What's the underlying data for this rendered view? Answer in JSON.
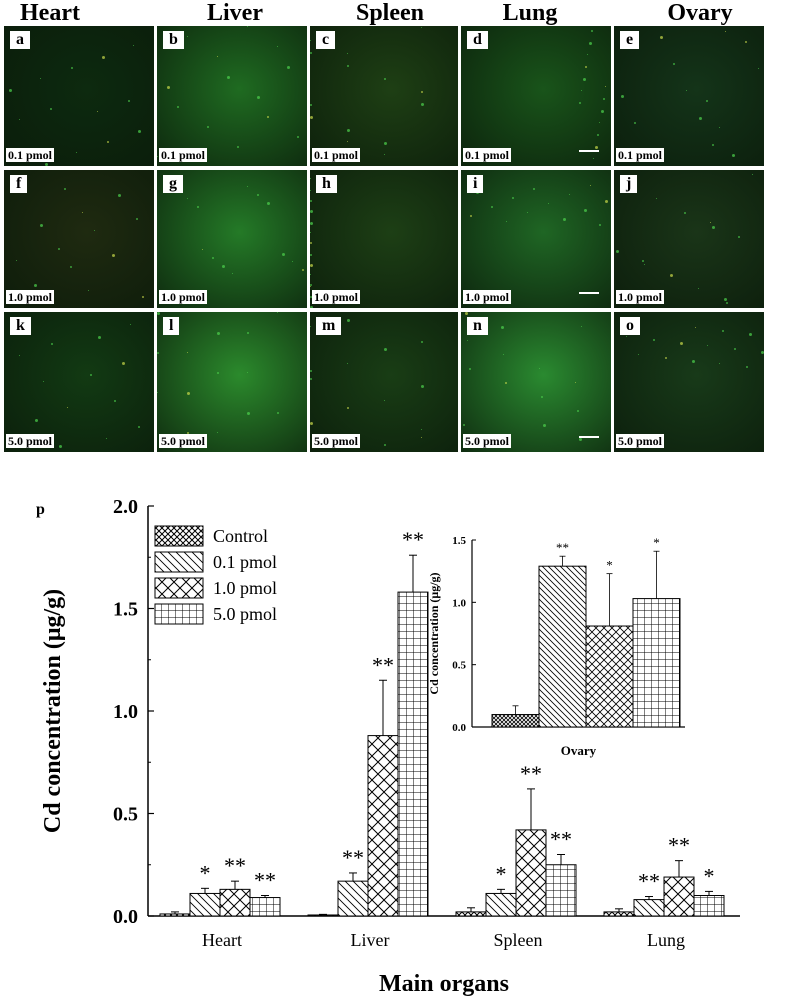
{
  "column_headers": [
    "Heart",
    "Liver",
    "Spleen",
    "Lung",
    "Ovary"
  ],
  "panels": [
    {
      "letter": "a",
      "dose": "0.1 pmol"
    },
    {
      "letter": "b",
      "dose": "0.1 pmol"
    },
    {
      "letter": "c",
      "dose": "0.1 pmol"
    },
    {
      "letter": "d",
      "dose": "0.1 pmol"
    },
    {
      "letter": "e",
      "dose": "0.1 pmol"
    },
    {
      "letter": "f",
      "dose": "1.0 pmol"
    },
    {
      "letter": "g",
      "dose": "1.0 pmol"
    },
    {
      "letter": "h",
      "dose": "1.0 pmol"
    },
    {
      "letter": "i",
      "dose": "1.0 pmol"
    },
    {
      "letter": "j",
      "dose": "1.0 pmol"
    },
    {
      "letter": "k",
      "dose": "5.0 pmol"
    },
    {
      "letter": "l",
      "dose": "5.0 pmol"
    },
    {
      "letter": "m",
      "dose": "5.0 pmol"
    },
    {
      "letter": "n",
      "dose": "5.0 pmol"
    },
    {
      "letter": "o",
      "dose": "5.0 pmol"
    }
  ],
  "panel_p_label": "p",
  "chart_data": [
    {
      "type": "bar",
      "categories": [
        "Heart",
        "Liver",
        "Spleen",
        "Lung"
      ],
      "series": [
        {
          "name": "Control",
          "values": [
            0.01,
            0.005,
            0.02,
            0.02
          ],
          "errors": [
            0.01,
            0.003,
            0.02,
            0.015
          ],
          "marks": [
            "",
            "",
            "",
            ""
          ]
        },
        {
          "name": "0.1 pmol",
          "values": [
            0.11,
            0.17,
            0.11,
            0.08
          ],
          "errors": [
            0.025,
            0.04,
            0.02,
            0.015
          ],
          "marks": [
            "*",
            "**",
            "*",
            "**"
          ]
        },
        {
          "name": "1.0 pmol",
          "values": [
            0.13,
            0.88,
            0.42,
            0.19
          ],
          "errors": [
            0.04,
            0.27,
            0.2,
            0.08
          ],
          "marks": [
            "**",
            "**",
            "**",
            "**"
          ]
        },
        {
          "name": "5.0 pmol",
          "values": [
            0.09,
            1.58,
            0.25,
            0.1
          ],
          "errors": [
            0.01,
            0.18,
            0.05,
            0.02
          ],
          "marks": [
            "**",
            "**",
            "**",
            "*"
          ]
        }
      ],
      "ylim": [
        0,
        2.0
      ],
      "yticks": [
        "0.0",
        "0.5",
        "1.0",
        "1.5",
        "2.0"
      ],
      "ylabel": "Cd concentration (μg/g)",
      "xlabel": "Main organs",
      "legend_position": "top-left"
    },
    {
      "type": "bar",
      "categories": [
        "Ovary"
      ],
      "series": [
        {
          "name": "Control",
          "values": [
            0.1
          ],
          "errors": [
            0.07
          ],
          "marks": [
            ""
          ]
        },
        {
          "name": "0.1 pmol",
          "values": [
            1.29
          ],
          "errors": [
            0.08
          ],
          "marks": [
            "**"
          ]
        },
        {
          "name": "1.0 pmol",
          "values": [
            0.81
          ],
          "errors": [
            0.42
          ],
          "marks": [
            "*"
          ]
        },
        {
          "name": "5.0 pmol",
          "values": [
            1.03
          ],
          "errors": [
            0.38
          ],
          "marks": [
            "*"
          ]
        }
      ],
      "ylim": [
        0,
        1.5
      ],
      "yticks": [
        "0.0",
        "0.5",
        "1.0",
        "1.5"
      ],
      "ylabel": "Cd concentration (μg/g)",
      "xlabel": "Ovary"
    }
  ]
}
